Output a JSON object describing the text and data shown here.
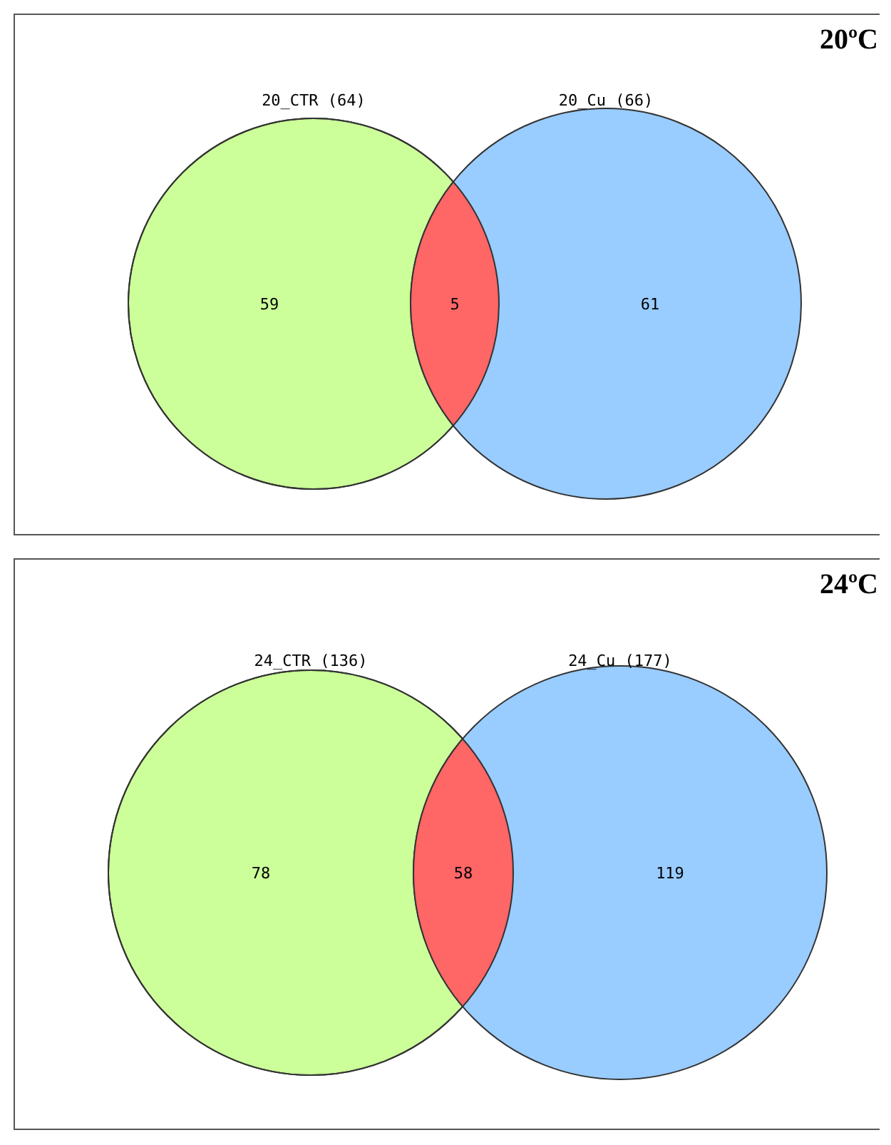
{
  "chart_data": [
    {
      "type": "other",
      "title": "20ºC",
      "annotations": [
        "20_CTR (64)",
        "20_Cu (66)"
      ],
      "categories": [
        null,
        null,
        null
      ],
      "values": [
        59,
        5,
        61
      ],
      "colors": [
        "#ccff99",
        "#ff6666",
        "#99ccff"
      ],
      "data_labels": true
    },
    {
      "type": "other",
      "title": "24ºC",
      "annotations": [
        "24_CTR (136)",
        "24_Cu (177)"
      ],
      "categories": [
        null,
        null,
        null
      ],
      "values": [
        78,
        58,
        119
      ],
      "colors": [
        "#ccff99",
        "#ff6666",
        "#99ccff"
      ],
      "data_labels": true
    }
  ]
}
